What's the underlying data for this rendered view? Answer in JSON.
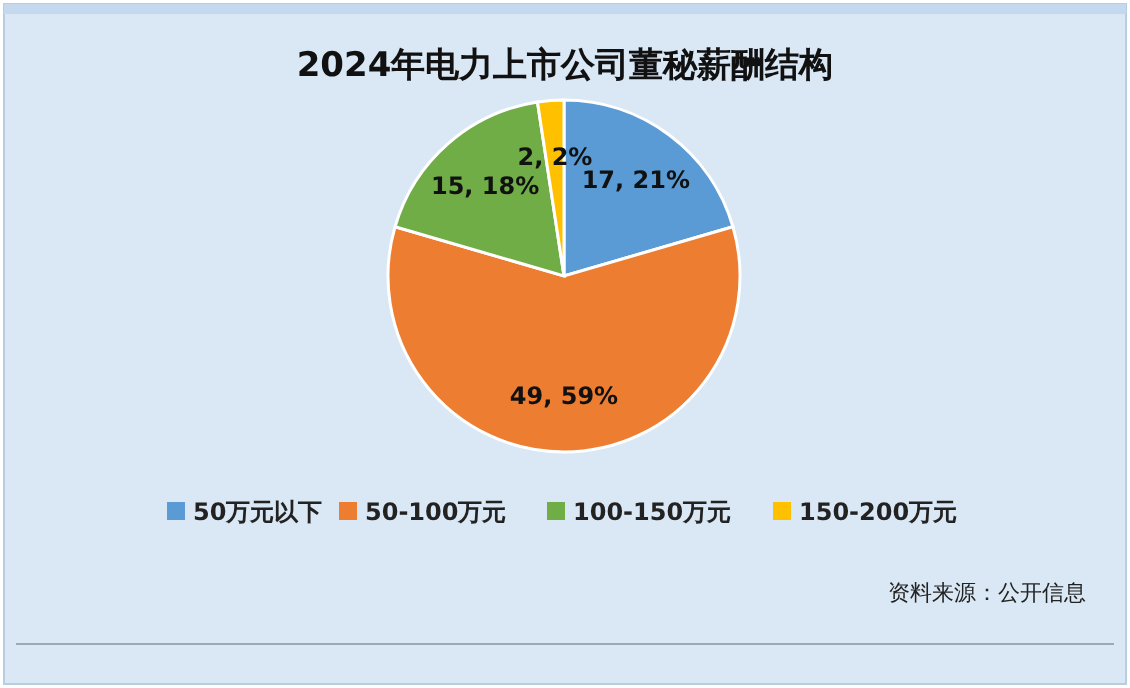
{
  "chart_data": {
    "type": "pie",
    "title": "2024年电力上市公司董秘薪酬结构",
    "categories": [
      "50万元以下",
      "50-100万元",
      "100-150万元",
      "150-200万元"
    ],
    "values": [
      17,
      49,
      15,
      2
    ],
    "colors": [
      "#5b9bd5",
      "#ed7d31",
      "#70ad47",
      "#ffc000"
    ],
    "value_labels": [
      "17, 21%",
      "49, 59%",
      "15, 18%",
      "2, 2%"
    ],
    "legend": "bottom",
    "annotations": [
      "资料来源：公开信息"
    ]
  }
}
